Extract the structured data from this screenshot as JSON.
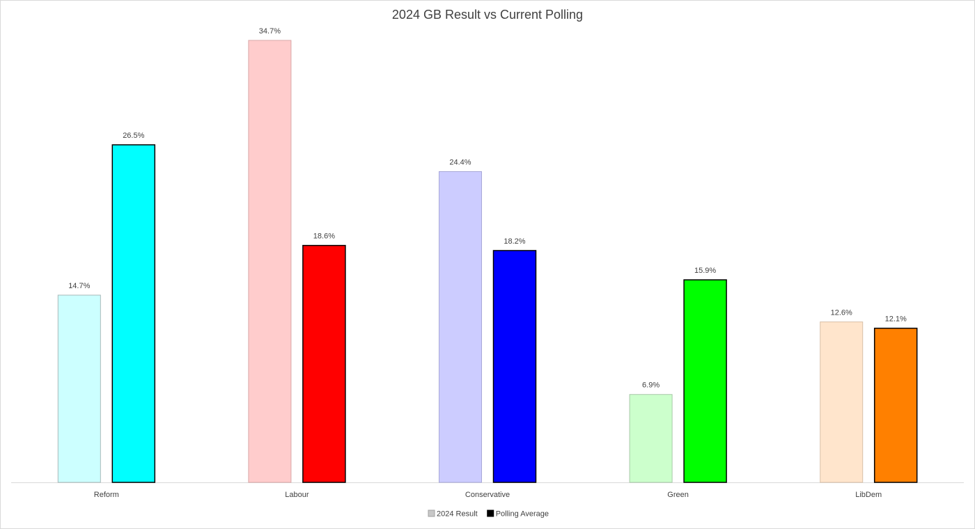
{
  "chart_data": {
    "type": "bar",
    "title": "2024 GB Result vs Current Polling",
    "categories": [
      "Reform",
      "Labour",
      "Conservative",
      "Green",
      "LibDem"
    ],
    "series": [
      {
        "name": "2024 Result",
        "color": "#c8c8c8",
        "values": [
          14.7,
          34.7,
          24.4,
          6.9,
          12.6
        ],
        "value_labels": [
          "14.7%",
          "34.7%",
          "24.4%",
          "6.9%",
          "12.6%"
        ],
        "colors": [
          "#ccffff",
          "#ffcccc",
          "#ccccff",
          "#ccffcc",
          "#ffe5cc"
        ]
      },
      {
        "name": "Polling Average",
        "color": "#000000",
        "values": [
          26.5,
          18.6,
          18.2,
          15.9,
          12.1
        ],
        "value_labels": [
          "26.5%",
          "18.6%",
          "18.2%",
          "15.9%",
          "12.1%"
        ],
        "colors": [
          "#00ffff",
          "#ff0000",
          "#0000ff",
          "#00ff00",
          "#ff8000"
        ]
      }
    ],
    "legend": "bottom"
  }
}
